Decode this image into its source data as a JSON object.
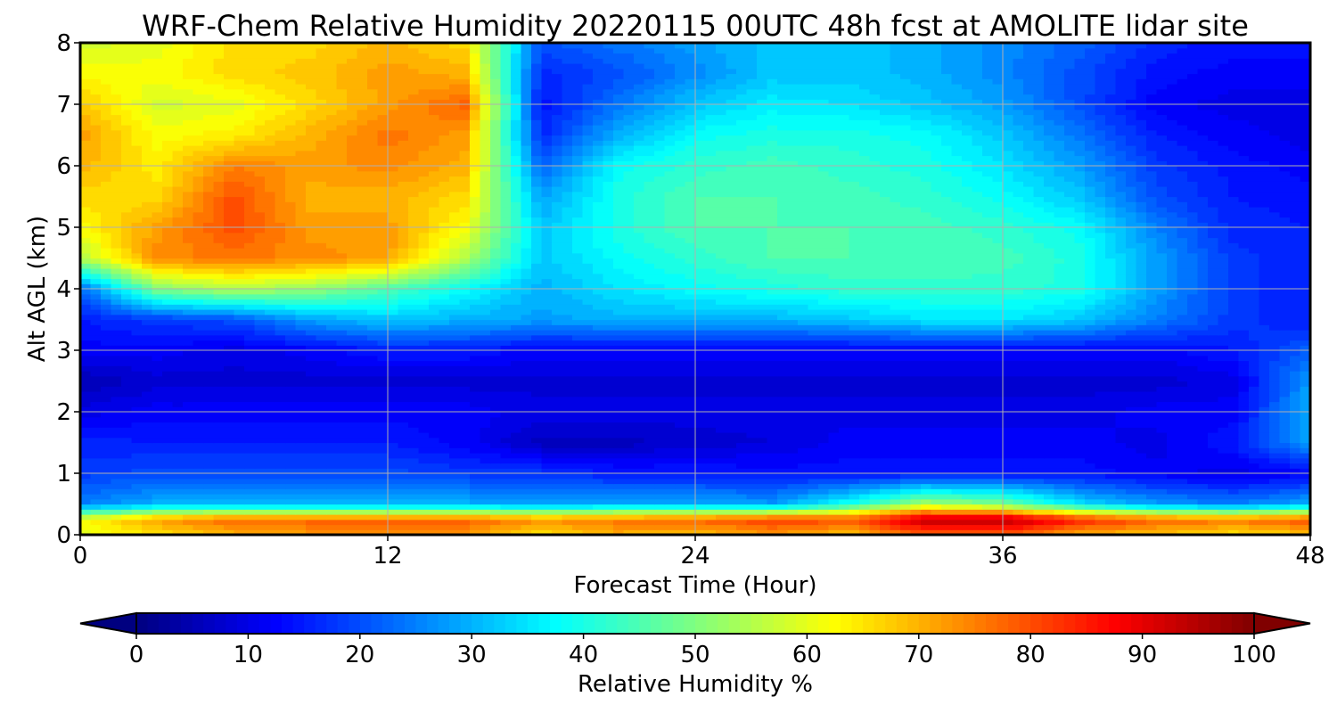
{
  "chart_data": {
    "type": "heatmap",
    "title": "WRF-Chem Relative Humidity 20220115 00UTC 48h fcst at AMOLITE lidar site",
    "xlabel": "Forecast Time (Hour)",
    "ylabel": "Alt AGL (km)",
    "xlim": [
      0,
      48
    ],
    "ylim": [
      0,
      8
    ],
    "x_ticks": [
      0,
      12,
      24,
      36,
      48
    ],
    "y_ticks": [
      0,
      1,
      2,
      3,
      4,
      5,
      6,
      7,
      8
    ],
    "grid": true,
    "colormap": "jet",
    "colorbar": {
      "label": "Relative Humidity %",
      "ticks": [
        0,
        10,
        20,
        30,
        40,
        50,
        60,
        70,
        80,
        90,
        100
      ],
      "range": [
        0,
        100
      ],
      "extend": "both",
      "orientation": "horizontal"
    },
    "x": [
      0,
      3,
      6,
      9,
      12,
      15,
      18,
      21,
      24,
      27,
      30,
      33,
      36,
      39,
      42,
      45,
      48
    ],
    "y": [
      0,
      0.25,
      0.5,
      1,
      1.5,
      2,
      2.5,
      3,
      3.5,
      4,
      4.5,
      5,
      5.5,
      6,
      6.5,
      7,
      7.5,
      8
    ],
    "z": [
      [
        60,
        65,
        70,
        72,
        72,
        72,
        65,
        70,
        68,
        72,
        68,
        78,
        78,
        70,
        68,
        65,
        68
      ],
      [
        62,
        72,
        78,
        78,
        78,
        78,
        74,
        76,
        78,
        82,
        80,
        95,
        96,
        85,
        78,
        76,
        80
      ],
      [
        25,
        30,
        30,
        30,
        30,
        30,
        28,
        30,
        30,
        28,
        40,
        55,
        50,
        35,
        28,
        25,
        30
      ],
      [
        18,
        20,
        20,
        20,
        20,
        18,
        18,
        15,
        15,
        14,
        14,
        14,
        14,
        14,
        12,
        10,
        12
      ],
      [
        16,
        15,
        15,
        15,
        15,
        12,
        6,
        6,
        8,
        9,
        12,
        12,
        12,
        12,
        10,
        15,
        28
      ],
      [
        10,
        12,
        12,
        12,
        12,
        12,
        10,
        10,
        10,
        10,
        10,
        10,
        10,
        10,
        12,
        12,
        30
      ],
      [
        5,
        8,
        8,
        8,
        8,
        8,
        8,
        8,
        8,
        8,
        8,
        8,
        8,
        8,
        8,
        10,
        28
      ],
      [
        12,
        12,
        10,
        12,
        15,
        15,
        12,
        12,
        12,
        12,
        12,
        12,
        12,
        12,
        12,
        15,
        22
      ],
      [
        15,
        18,
        20,
        28,
        32,
        30,
        28,
        30,
        30,
        30,
        32,
        35,
        35,
        32,
        25,
        18,
        15
      ],
      [
        22,
        50,
        55,
        52,
        45,
        38,
        30,
        35,
        38,
        40,
        42,
        42,
        42,
        40,
        28,
        18,
        15
      ],
      [
        55,
        74,
        76,
        74,
        72,
        55,
        32,
        38,
        42,
        45,
        45,
        45,
        44,
        40,
        28,
        18,
        15
      ],
      [
        62,
        72,
        80,
        72,
        72,
        62,
        32,
        40,
        45,
        45,
        45,
        44,
        42,
        38,
        25,
        16,
        15
      ],
      [
        66,
        66,
        80,
        70,
        70,
        66,
        28,
        40,
        45,
        45,
        44,
        42,
        38,
        32,
        20,
        15,
        14
      ],
      [
        70,
        64,
        75,
        72,
        74,
        70,
        22,
        38,
        42,
        44,
        42,
        40,
        35,
        28,
        18,
        14,
        12
      ],
      [
        72,
        62,
        64,
        70,
        76,
        72,
        16,
        30,
        38,
        40,
        40,
        38,
        32,
        24,
        15,
        12,
        10
      ],
      [
        68,
        58,
        60,
        66,
        72,
        78,
        14,
        24,
        32,
        36,
        35,
        32,
        28,
        20,
        12,
        10,
        10
      ],
      [
        62,
        62,
        66,
        68,
        72,
        70,
        16,
        20,
        26,
        32,
        32,
        30,
        26,
        20,
        14,
        12,
        12
      ],
      [
        58,
        60,
        66,
        66,
        70,
        66,
        20,
        24,
        28,
        32,
        32,
        30,
        26,
        22,
        16,
        14,
        14
      ]
    ]
  }
}
